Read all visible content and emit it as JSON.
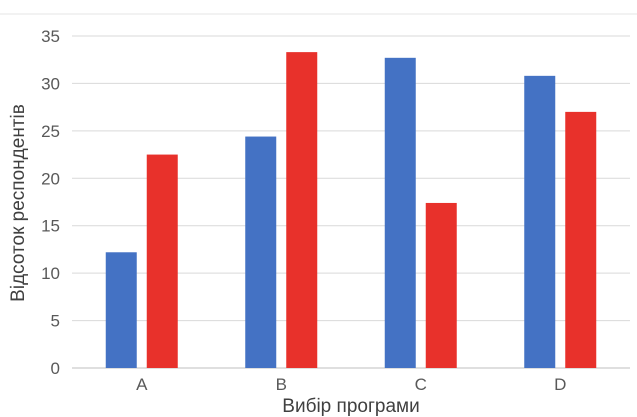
{
  "chart_data": {
    "type": "bar",
    "title": "",
    "xlabel": "Вибір програми",
    "ylabel": "Відсоток респондентів",
    "categories": [
      "A",
      "B",
      "C",
      "D"
    ],
    "series": [
      {
        "values": [
          12.2,
          24.4,
          32.7,
          30.8
        ]
      },
      {
        "values": [
          22.5,
          33.3,
          17.4,
          27.0
        ]
      }
    ],
    "ylim": [
      0,
      35
    ],
    "yticks": [
      "0",
      "5",
      "10",
      "15",
      "20",
      "25",
      "30",
      "35"
    ],
    "grid": true,
    "legend": "none",
    "colors": [
      "#4472C4",
      "#E8312B"
    ]
  }
}
